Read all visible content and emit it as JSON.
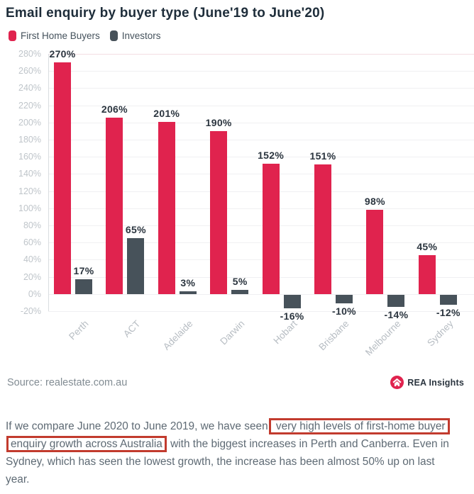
{
  "title": "Email enquiry by buyer type (June'19 to June'20)",
  "chart_data": {
    "type": "bar",
    "title": "Email enquiry by buyer type (June'19 to June'20)",
    "categories": [
      "Perth",
      "ACT",
      "Adelaide",
      "Darwin",
      "Hobart",
      "Brisbane",
      "Melbourne",
      "Sydney"
    ],
    "series": [
      {
        "name": "First Home Buyers",
        "color": "#e0234e",
        "values": [
          270,
          206,
          201,
          190,
          152,
          151,
          98,
          45
        ]
      },
      {
        "name": "Investors",
        "color": "#47525a",
        "values": [
          17,
          65,
          3,
          5,
          -16,
          -10,
          -14,
          -12
        ]
      }
    ],
    "value_suffix": "%",
    "xlabel": "",
    "ylabel": "",
    "ylim": [
      -20,
      280
    ],
    "y_ticks": [
      280,
      260,
      240,
      220,
      200,
      180,
      160,
      140,
      120,
      100,
      80,
      60,
      40,
      20,
      0,
      -20
    ],
    "grid": true,
    "legend_position": "top-left",
    "colors": {
      "grid": "#f0f0f2",
      "top_gridline": "#f3dde2",
      "tick_label": "#bfc5ca",
      "category_label": "#b7bdc3",
      "value_label": "#2b353f"
    }
  },
  "source": {
    "label": "Source: realestate.com.au"
  },
  "branding": {
    "name": "REA Insights",
    "logo_color": "#e0234e"
  },
  "commentary": {
    "highlight_border_color": "#c23b2e",
    "lines": [
      {
        "segments": [
          {
            "text": "If we compare June 2020 to June 2019, we have seen",
            "boxed": false
          },
          {
            "text": "very high levels of first-home buyer",
            "boxed": true
          }
        ]
      },
      {
        "segments": [
          {
            "text": "enquiry growth across Australia",
            "boxed": true
          },
          {
            "text": "with the biggest increases in Perth and Canberra. Even in",
            "boxed": false
          }
        ]
      },
      {
        "segments": [
          {
            "text": "Sydney, which has seen the lowest growth, the increase has been almost 50% up on last",
            "boxed": false
          }
        ]
      },
      {
        "segments": [
          {
            "text": "year.",
            "boxed": false
          }
        ]
      }
    ]
  }
}
